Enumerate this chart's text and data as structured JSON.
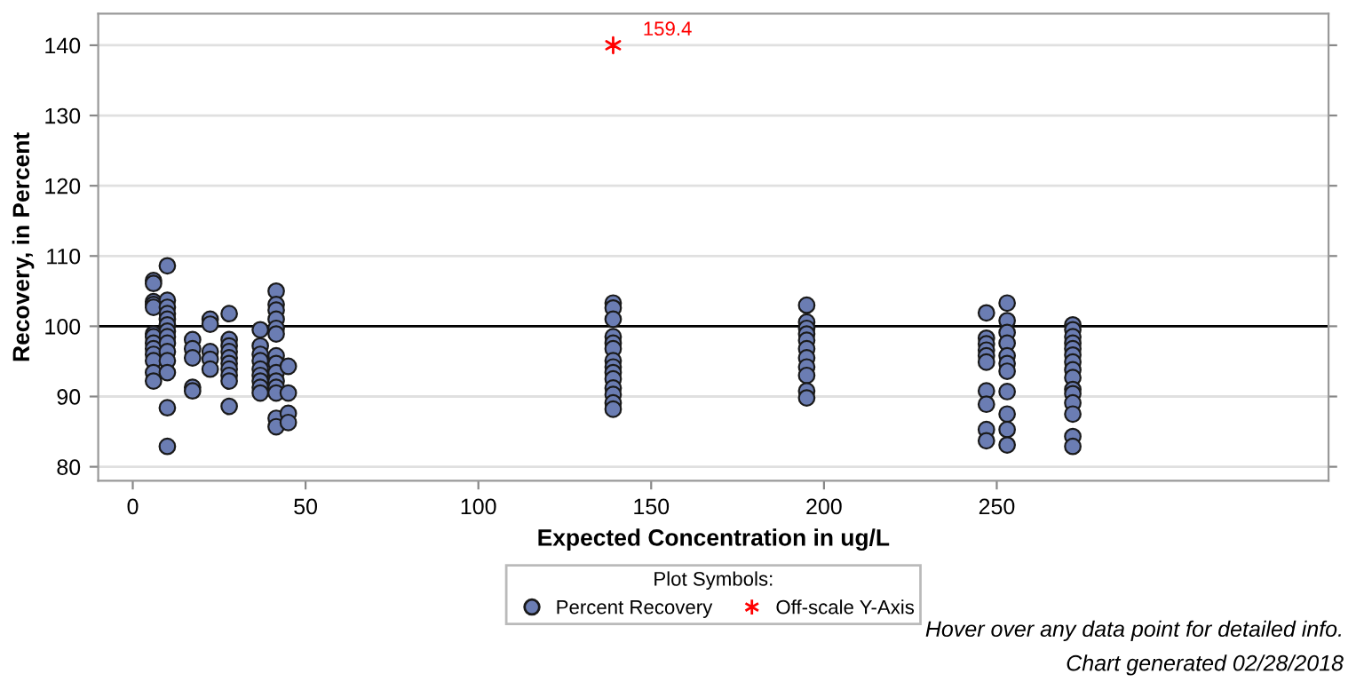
{
  "chart_data": {
    "type": "scatter",
    "xlabel": "Expected Concentration in ug/L",
    "ylabel": "Recovery, in Percent",
    "xlim": [
      -10,
      346
    ],
    "xticks": [
      0,
      50,
      100,
      150,
      200,
      250
    ],
    "ylim": [
      78,
      144.5
    ],
    "yticks": [
      80,
      90,
      100,
      110,
      120,
      130,
      140
    ],
    "grid": "y",
    "legend": "bottom",
    "legend_title": "Plot Symbols:",
    "ref_lines": [
      {
        "axis": "y",
        "value": 100,
        "color": "#000000"
      }
    ],
    "series": [
      {
        "name": "Percent Recovery",
        "color": "#6b7db3",
        "marker": "circle",
        "x": [
          6,
          6,
          6,
          6,
          6,
          6,
          6,
          6,
          6,
          6,
          6,
          6,
          6,
          10,
          10,
          10,
          10,
          10,
          10,
          10,
          10,
          10,
          10,
          10,
          10,
          10,
          10,
          17.3,
          17.3,
          17.3,
          17.3,
          17.3,
          22.4,
          22.4,
          22.4,
          22.4,
          22.4,
          27.9,
          27.9,
          27.9,
          27.9,
          27.9,
          27.9,
          27.9,
          27.9,
          27.9,
          27.9,
          36.9,
          36.9,
          36.9,
          36.9,
          36.9,
          36.9,
          36.9,
          36.9,
          36.9,
          41.5,
          41.5,
          41.5,
          41.5,
          41.5,
          41.5,
          41.5,
          41.5,
          41.5,
          41.5,
          41.5,
          41.5,
          41.5,
          41.5,
          45,
          45,
          45,
          45,
          139,
          139,
          139,
          139,
          139,
          139,
          139,
          139,
          139,
          139,
          139,
          139,
          139,
          139,
          195,
          195,
          195,
          195,
          195,
          195,
          195,
          195,
          195,
          195,
          195,
          247,
          247,
          247,
          247,
          247,
          247,
          247,
          247,
          247,
          247,
          253,
          253,
          253,
          253,
          253,
          253,
          253,
          253,
          253,
          253,
          253,
          272,
          272,
          272,
          272,
          272,
          272,
          272,
          272,
          272,
          272,
          272,
          272,
          272,
          272,
          272
        ],
        "values": [
          106.5,
          106.1,
          103.5,
          103.1,
          102.7,
          98.9,
          98.5,
          97.6,
          96.8,
          96,
          95.1,
          93.4,
          92.2,
          108.6,
          103.7,
          102.7,
          101.8,
          101,
          100.2,
          99.3,
          98.5,
          97.6,
          96.4,
          95.1,
          93.4,
          88.4,
          82.9,
          98.1,
          96.8,
          95.5,
          91.3,
          90.8,
          101,
          100.3,
          96.4,
          95.3,
          93.9,
          101.8,
          98.1,
          97.2,
          96.4,
          95.5,
          94.7,
          93.9,
          93,
          92.2,
          88.6,
          99.5,
          97.2,
          96,
          95.1,
          93.9,
          93,
          92.2,
          91.3,
          90.5,
          105,
          103.1,
          102.3,
          101,
          99.7,
          98.9,
          95.8,
          94.7,
          93.4,
          92.2,
          91.3,
          90.5,
          86.9,
          85.7,
          94.3,
          90.5,
          87.6,
          86.3,
          103.3,
          102.6,
          101,
          98.5,
          97.6,
          96.8,
          95.1,
          94.2,
          93.4,
          92.5,
          91.2,
          90.3,
          89.1,
          88.2,
          103,
          100.6,
          99.7,
          98.9,
          98,
          96.8,
          95.5,
          94.2,
          93,
          90.8,
          89.8,
          101.9,
          98.3,
          97.5,
          96.6,
          95.8,
          94.9,
          90.8,
          88.9,
          85.3,
          83.7,
          103.3,
          100.8,
          99.1,
          97.6,
          95.8,
          94.7,
          93.6,
          90.7,
          87.5,
          85.3,
          83.1,
          100.2,
          99.5,
          98.5,
          97.6,
          96.8,
          95.9,
          94.9,
          93.8,
          92.7,
          91,
          90.4,
          89.1,
          87.5,
          84.3,
          82.9
        ]
      },
      {
        "name": "Off-scale Y-Axis",
        "color": "#ff0000",
        "marker": "cross",
        "x": [
          139
        ],
        "values": [
          140
        ]
      }
    ],
    "annotations": [
      {
        "text": "159.4",
        "x": 139,
        "y": 140
      },
      "Hover over any data point for detailed info.",
      "Chart generated 02/28/2018"
    ]
  }
}
